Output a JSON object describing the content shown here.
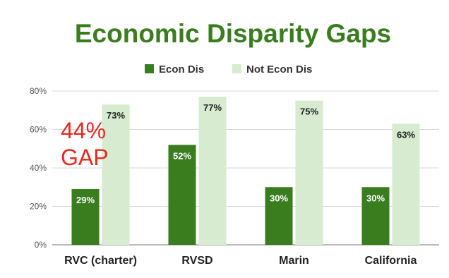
{
  "chart_data": {
    "type": "bar",
    "title": "Economic Disparity Gaps",
    "categories": [
      "RVC (charter)",
      "RVSD",
      "Marin",
      "California"
    ],
    "series": [
      {
        "name": "Econ Dis",
        "values": [
          29,
          52,
          30,
          30
        ],
        "labels": [
          "29%",
          "52%",
          "30%",
          "30%"
        ],
        "color": "#3a7d1f"
      },
      {
        "name": "Not Econ Dis",
        "values": [
          73,
          77,
          75,
          63
        ],
        "labels": [
          "73%",
          "77%",
          "75%",
          "63%"
        ],
        "color": "#d6ebcf"
      }
    ],
    "ylim": [
      0,
      80
    ],
    "yticks": [
      0,
      20,
      40,
      60,
      80
    ],
    "ytick_labels": [
      "0%",
      "20%",
      "40%",
      "60%",
      "80%"
    ],
    "grid": true,
    "legend_position": "top-center",
    "annotation": {
      "line1": "44%",
      "line2": "GAP",
      "color": "#e8281e"
    }
  },
  "colors": {
    "title": "#3a7d1f",
    "grid": "#d9d9d9",
    "axis": "#777777"
  }
}
